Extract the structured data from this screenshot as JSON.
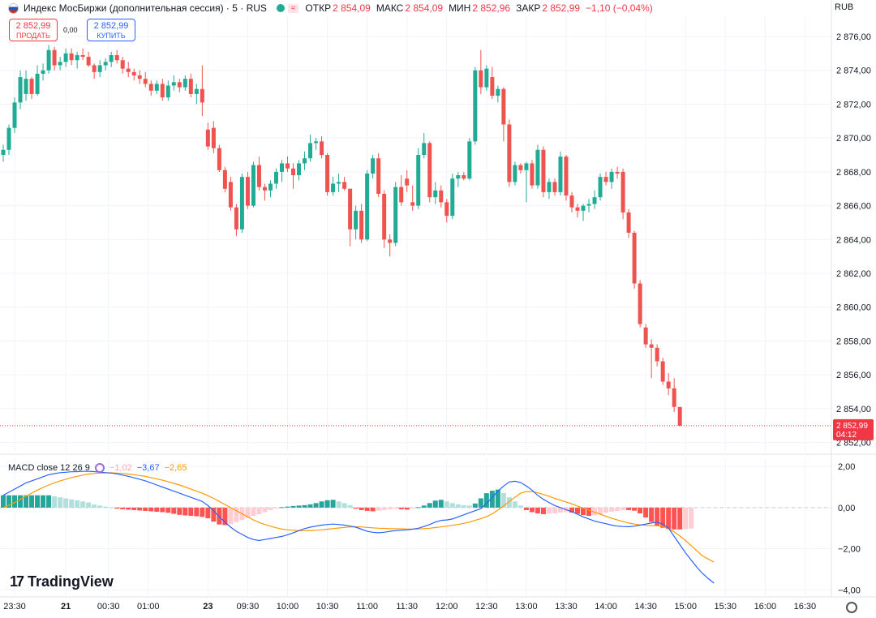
{
  "header": {
    "title": "Индекс МосБиржи (дополнительная сессия) · 5 · RUS",
    "wave_icon": "≈",
    "open_label": "ОТКР",
    "open_value": "2 854,09",
    "high_label": "МАКС",
    "high_value": "2 854,09",
    "low_label": "МИН",
    "low_value": "2 852,96",
    "close_label": "ЗАКР",
    "close_value": "2 852,99",
    "change_value": "−1,10 (−0,04%)"
  },
  "trade": {
    "sell_price": "2 852,99",
    "sell_label": "ПРОДАТЬ",
    "buy_price": "2 852,99",
    "buy_label": "КУПИТЬ",
    "spread": "0,00"
  },
  "currency": "RUB",
  "macd_header": {
    "label": "MACD close 12 26 9",
    "hist": "−1,02",
    "macd": "−3,67",
    "signal": "−2,65"
  },
  "logo": {
    "mark": "17",
    "text": "TradingView"
  },
  "colors": {
    "up": "#22ab94",
    "down": "#ef5350",
    "hist_pos_strong": "#26a69a",
    "hist_pos_weak": "#b2dfdb",
    "hist_neg_strong": "#ff5252",
    "hist_neg_weak": "#ffcdd2",
    "macd_line": "#2962ff",
    "signal_line": "#ff9800",
    "price_tag": "#f23645"
  },
  "chart_data": [
    {
      "type": "candlestick",
      "name": "price",
      "ylim": [
        2851.5,
        2877.2
      ],
      "y_ticks": [
        "2 876,00",
        "2 874,00",
        "2 872,00",
        "2 870,00",
        "2 868,00",
        "2 866,00",
        "2 864,00",
        "2 862,00",
        "2 860,00",
        "2 858,00",
        "2 856,00",
        "2 854,00",
        "2 852,00"
      ],
      "y_tick_values": [
        2876,
        2874,
        2872,
        2870,
        2868,
        2866,
        2864,
        2862,
        2860,
        2858,
        2856,
        2854,
        2852
      ],
      "last_price": 2852.99,
      "last_price_label": "2 852,99",
      "countdown": "04:12",
      "x_ticks": [
        "23:30",
        "21",
        "00:30",
        "01:00",
        "23",
        "09:30",
        "10:00",
        "10:30",
        "11:00",
        "11:30",
        "12:00",
        "12:30",
        "13:00",
        "13:30",
        "14:00",
        "14:30",
        "15:00",
        "15:30",
        "16:00",
        "16:30"
      ],
      "x_tick_index": [
        2,
        11,
        18.5,
        25.5,
        36,
        43,
        50,
        57,
        64,
        71,
        78,
        85,
        92,
        99,
        106,
        113,
        120,
        127,
        134,
        141
      ],
      "candles": [
        [
          2869.0,
          2869.6,
          2868.6,
          2869.3
        ],
        [
          2869.3,
          2870.8,
          2869.0,
          2870.6
        ],
        [
          2870.6,
          2872.4,
          2870.3,
          2872.1
        ],
        [
          2872.1,
          2874.0,
          2871.7,
          2873.6
        ],
        [
          2872.6,
          2874.0,
          2872.2,
          2873.5
        ],
        [
          2873.5,
          2873.6,
          2872.3,
          2872.6
        ],
        [
          2872.6,
          2874.3,
          2872.5,
          2873.8
        ],
        [
          2873.8,
          2874.4,
          2873.4,
          2874.0
        ],
        [
          2874.0,
          2875.5,
          2873.8,
          2875.2
        ],
        [
          2875.2,
          2875.4,
          2874.0,
          2874.3
        ],
        [
          2874.3,
          2874.8,
          2874.0,
          2874.5
        ],
        [
          2874.5,
          2875.3,
          2874.2,
          2875.0
        ],
        [
          2875.0,
          2875.3,
          2874.3,
          2874.6
        ],
        [
          2874.6,
          2875.1,
          2874.1,
          2874.9
        ],
        [
          2874.9,
          2875.3,
          2874.6,
          2874.8
        ],
        [
          2874.8,
          2875.1,
          2874.2,
          2874.3
        ],
        [
          2874.3,
          2874.4,
          2873.5,
          2873.9
        ],
        [
          2873.9,
          2874.6,
          2873.6,
          2874.3
        ],
        [
          2874.3,
          2874.7,
          2874.0,
          2874.5
        ],
        [
          2874.5,
          2875.1,
          2874.2,
          2874.9
        ],
        [
          2874.9,
          2875.2,
          2874.4,
          2874.6
        ],
        [
          2874.6,
          2874.8,
          2873.8,
          2874.1
        ],
        [
          2874.1,
          2874.5,
          2873.6,
          2873.9
        ],
        [
          2873.9,
          2874.1,
          2873.4,
          2873.7
        ],
        [
          2873.7,
          2874.0,
          2873.2,
          2873.5
        ],
        [
          2873.5,
          2873.9,
          2873.0,
          2873.2
        ],
        [
          2873.2,
          2873.4,
          2872.5,
          2872.8
        ],
        [
          2872.8,
          2873.4,
          2872.6,
          2873.2
        ],
        [
          2873.2,
          2873.5,
          2872.2,
          2872.4
        ],
        [
          2872.4,
          2873.4,
          2872.2,
          2873.1
        ],
        [
          2873.1,
          2873.7,
          2872.8,
          2873.3
        ],
        [
          2873.3,
          2873.5,
          2872.7,
          2873.0
        ],
        [
          2873.0,
          2873.7,
          2872.8,
          2873.5
        ],
        [
          2873.5,
          2873.8,
          2872.4,
          2872.6
        ],
        [
          2872.6,
          2873.2,
          2872.0,
          2872.9
        ],
        [
          2872.9,
          2874.3,
          2871.3,
          2872.1
        ],
        [
          2870.5,
          2870.9,
          2869.3,
          2869.5
        ],
        [
          2870.6,
          2871.0,
          2869.1,
          2869.4
        ],
        [
          2869.4,
          2869.6,
          2868.0,
          2868.1
        ],
        [
          2868.1,
          2868.3,
          2866.8,
          2867.0
        ],
        [
          2867.4,
          2867.7,
          2865.7,
          2865.9
        ],
        [
          2865.9,
          2866.1,
          2864.2,
          2864.6
        ],
        [
          2864.6,
          2867.9,
          2864.4,
          2867.7
        ],
        [
          2867.7,
          2868.0,
          2865.8,
          2866.0
        ],
        [
          2866.0,
          2868.6,
          2865.9,
          2868.4
        ],
        [
          2868.4,
          2868.9,
          2866.9,
          2867.1
        ],
        [
          2867.1,
          2867.3,
          2866.3,
          2866.9
        ],
        [
          2866.9,
          2867.5,
          2866.5,
          2867.3
        ],
        [
          2867.3,
          2868.2,
          2867.0,
          2868.0
        ],
        [
          2868.0,
          2868.7,
          2867.4,
          2868.5
        ],
        [
          2868.5,
          2868.9,
          2868.0,
          2868.2
        ],
        [
          2868.2,
          2868.5,
          2867.0,
          2867.8
        ],
        [
          2867.8,
          2868.7,
          2867.5,
          2868.5
        ],
        [
          2868.5,
          2869.2,
          2868.1,
          2868.8
        ],
        [
          2868.8,
          2870.2,
          2868.6,
          2869.7
        ],
        [
          2869.7,
          2870.0,
          2869.3,
          2869.8
        ],
        [
          2869.8,
          2870.1,
          2868.8,
          2869.0
        ],
        [
          2869.0,
          2869.1,
          2866.6,
          2866.8
        ],
        [
          2866.8,
          2867.7,
          2866.6,
          2867.3
        ],
        [
          2867.3,
          2867.9,
          2866.8,
          2867.4
        ],
        [
          2867.4,
          2867.7,
          2866.9,
          2867.0
        ],
        [
          2867.0,
          2867.0,
          2863.6,
          2864.6
        ],
        [
          2864.6,
          2866.0,
          2864.0,
          2865.7
        ],
        [
          2865.7,
          2866.1,
          2863.8,
          2864.0
        ],
        [
          2864.0,
          2868.1,
          2863.9,
          2867.9
        ],
        [
          2867.9,
          2869.0,
          2867.6,
          2868.8
        ],
        [
          2868.8,
          2869.1,
          2866.5,
          2866.7
        ],
        [
          2866.7,
          2866.9,
          2863.5,
          2864.0
        ],
        [
          2864.0,
          2864.3,
          2863.0,
          2863.8
        ],
        [
          2863.8,
          2867.4,
          2863.6,
          2867.1
        ],
        [
          2867.1,
          2867.8,
          2866.0,
          2866.2
        ],
        [
          2867.6,
          2868.1,
          2866.8,
          2867.2
        ],
        [
          2866.2,
          2867.2,
          2865.7,
          2866.0
        ],
        [
          2866.0,
          2869.4,
          2865.8,
          2869.0
        ],
        [
          2869.0,
          2870.3,
          2868.8,
          2869.7
        ],
        [
          2869.7,
          2869.8,
          2866.2,
          2866.5
        ],
        [
          2866.5,
          2867.4,
          2866.1,
          2866.9
        ],
        [
          2866.9,
          2867.2,
          2865.9,
          2866.2
        ],
        [
          2866.2,
          2866.4,
          2865.0,
          2865.4
        ],
        [
          2865.4,
          2867.9,
          2865.2,
          2867.6
        ],
        [
          2867.6,
          2868.0,
          2867.1,
          2867.8
        ],
        [
          2867.8,
          2868.0,
          2867.5,
          2867.6
        ],
        [
          2867.6,
          2870.0,
          2867.5,
          2869.8
        ],
        [
          2869.8,
          2874.2,
          2869.6,
          2874.0
        ],
        [
          2874.0,
          2875.2,
          2872.6,
          2873.0
        ],
        [
          2873.0,
          2874.3,
          2872.8,
          2874.1
        ],
        [
          2873.6,
          2874.2,
          2872.3,
          2872.5
        ],
        [
          2872.5,
          2873.1,
          2872.1,
          2872.9
        ],
        [
          2872.9,
          2873.0,
          2869.8,
          2870.8
        ],
        [
          2870.8,
          2871.1,
          2867.1,
          2867.4
        ],
        [
          2867.4,
          2868.6,
          2867.2,
          2868.4
        ],
        [
          2868.4,
          2868.5,
          2867.9,
          2868.1
        ],
        [
          2868.1,
          2868.6,
          2866.2,
          2868.5
        ],
        [
          2868.5,
          2868.7,
          2867.0,
          2867.2
        ],
        [
          2867.2,
          2869.6,
          2867.0,
          2869.3
        ],
        [
          2869.3,
          2869.5,
          2866.5,
          2866.8
        ],
        [
          2866.8,
          2867.6,
          2866.4,
          2867.4
        ],
        [
          2867.4,
          2867.6,
          2866.6,
          2866.8
        ],
        [
          2866.8,
          2869.2,
          2866.6,
          2868.9
        ],
        [
          2868.9,
          2869.0,
          2866.3,
          2866.6
        ],
        [
          2866.6,
          2866.8,
          2865.6,
          2865.9
        ],
        [
          2865.9,
          2866.1,
          2865.3,
          2865.7
        ],
        [
          2865.7,
          2866.1,
          2865.1,
          2866.0
        ],
        [
          2866.0,
          2866.4,
          2865.6,
          2866.1
        ],
        [
          2866.1,
          2866.9,
          2865.8,
          2866.5
        ],
        [
          2866.5,
          2867.9,
          2866.3,
          2867.7
        ],
        [
          2867.7,
          2868.0,
          2867.2,
          2867.4
        ],
        [
          2867.4,
          2868.2,
          2867.0,
          2868.0
        ],
        [
          2868.0,
          2868.3,
          2867.6,
          2867.9
        ],
        [
          2868.0,
          2868.2,
          2865.2,
          2865.6
        ],
        [
          2865.6,
          2865.8,
          2864.1,
          2864.4
        ],
        [
          2864.4,
          2864.5,
          2861.1,
          2861.4
        ],
        [
          2861.4,
          2861.6,
          2858.8,
          2859.0
        ],
        [
          2858.8,
          2859.0,
          2857.6,
          2857.8
        ],
        [
          2857.8,
          2858.1,
          2855.8,
          2857.6
        ],
        [
          2857.6,
          2857.8,
          2856.5,
          2856.8
        ],
        [
          2856.8,
          2857.0,
          2855.4,
          2855.6
        ],
        [
          2855.6,
          2856.1,
          2854.8,
          2855.2
        ],
        [
          2855.2,
          2855.8,
          2853.8,
          2854.1
        ],
        [
          2854.1,
          2854.1,
          2852.96,
          2852.99
        ]
      ]
    },
    {
      "type": "macd",
      "name": "MACD close 12 26 9",
      "ylim": [
        -4.3,
        2.4
      ],
      "y_ticks": [
        "2,00",
        "0,00",
        "−2,00",
        "−4,00"
      ],
      "y_tick_values": [
        2,
        0,
        -2,
        -4
      ],
      "histogram": [
        0.6,
        0.6,
        0.6,
        0.6,
        0.6,
        0.6,
        0.6,
        0.6,
        0.6,
        0.55,
        0.5,
        0.45,
        0.4,
        0.35,
        0.3,
        0.25,
        0.15,
        0.1,
        0.05,
        0.02,
        -0.05,
        -0.08,
        -0.1,
        -0.12,
        -0.14,
        -0.16,
        -0.18,
        -0.2,
        -0.22,
        -0.25,
        -0.3,
        -0.35,
        -0.38,
        -0.4,
        -0.42,
        -0.45,
        -0.52,
        -0.68,
        -0.82,
        -0.85,
        -0.8,
        -0.7,
        -0.6,
        -0.5,
        -0.4,
        -0.32,
        -0.22,
        -0.12,
        -0.05,
        0.02,
        0.05,
        0.08,
        0.1,
        0.12,
        0.16,
        0.22,
        0.3,
        0.36,
        0.38,
        0.3,
        0.22,
        0.12,
        -0.05,
        -0.12,
        -0.16,
        -0.18,
        -0.15,
        -0.12,
        -0.08,
        -0.05,
        -0.08,
        -0.1,
        -0.05,
        0.02,
        0.1,
        0.22,
        0.34,
        0.38,
        0.3,
        0.22,
        0.16,
        0.12,
        0.1,
        0.2,
        0.45,
        0.7,
        0.82,
        0.88,
        0.7,
        0.5,
        0.3,
        0.1,
        -0.12,
        -0.22,
        -0.28,
        -0.32,
        -0.3,
        -0.28,
        -0.24,
        -0.22,
        -0.24,
        -0.3,
        -0.36,
        -0.4,
        -0.38,
        -0.32,
        -0.25,
        -0.2,
        -0.16,
        -0.12,
        -0.12,
        -0.15,
        -0.28,
        -0.48,
        -0.7,
        -0.88,
        -0.98,
        -1.04,
        -1.06,
        -1.06,
        -1.04,
        -1.02
      ],
      "macd_line": [
        0.6,
        0.75,
        0.9,
        1.05,
        1.2,
        1.3,
        1.4,
        1.5,
        1.6,
        1.65,
        1.7,
        1.72,
        1.74,
        1.75,
        1.76,
        1.76,
        1.75,
        1.72,
        1.7,
        1.68,
        1.64,
        1.58,
        1.52,
        1.45,
        1.38,
        1.3,
        1.2,
        1.1,
        1.0,
        0.9,
        0.8,
        0.7,
        0.6,
        0.5,
        0.4,
        0.3,
        0.1,
        -0.15,
        -0.45,
        -0.7,
        -0.95,
        -1.15,
        -1.3,
        -1.45,
        -1.55,
        -1.6,
        -1.55,
        -1.5,
        -1.45,
        -1.4,
        -1.32,
        -1.22,
        -1.12,
        -1.02,
        -0.95,
        -0.9,
        -0.85,
        -0.82,
        -0.8,
        -0.82,
        -0.85,
        -0.9,
        -0.95,
        -1.05,
        -1.15,
        -1.2,
        -1.22,
        -1.2,
        -1.15,
        -1.12,
        -1.1,
        -1.08,
        -1.05,
        -1.0,
        -0.92,
        -0.82,
        -0.7,
        -0.62,
        -0.6,
        -0.55,
        -0.45,
        -0.35,
        -0.25,
        -0.15,
        -0.05,
        0.2,
        0.5,
        0.8,
        1.05,
        1.25,
        1.28,
        1.22,
        1.05,
        0.85,
        0.6,
        0.4,
        0.25,
        0.1,
        0.0,
        -0.1,
        -0.2,
        -0.32,
        -0.45,
        -0.55,
        -0.65,
        -0.72,
        -0.78,
        -0.85,
        -0.9,
        -0.92,
        -0.93,
        -0.9,
        -0.85,
        -0.8,
        -0.75,
        -0.7,
        -0.8,
        -1.0,
        -1.4,
        -1.8,
        -2.2,
        -2.55,
        -2.9,
        -3.2,
        -3.45,
        -3.67
      ],
      "signal_line": [
        0.0,
        0.12,
        0.25,
        0.4,
        0.55,
        0.7,
        0.85,
        0.98,
        1.1,
        1.2,
        1.3,
        1.38,
        1.46,
        1.52,
        1.58,
        1.63,
        1.66,
        1.68,
        1.69,
        1.69,
        1.68,
        1.66,
        1.63,
        1.6,
        1.56,
        1.52,
        1.46,
        1.4,
        1.33,
        1.26,
        1.18,
        1.1,
        1.0,
        0.9,
        0.8,
        0.7,
        0.58,
        0.45,
        0.3,
        0.15,
        0.0,
        -0.15,
        -0.3,
        -0.45,
        -0.6,
        -0.72,
        -0.82,
        -0.9,
        -0.98,
        -1.04,
        -1.08,
        -1.1,
        -1.12,
        -1.12,
        -1.11,
        -1.1,
        -1.08,
        -1.05,
        -1.02,
        -0.99,
        -0.96,
        -0.94,
        -0.93,
        -0.94,
        -0.96,
        -0.98,
        -1.0,
        -1.01,
        -1.02,
        -1.03,
        -1.03,
        -1.04,
        -1.04,
        -1.04,
        -1.02,
        -1.0,
        -0.97,
        -0.94,
        -0.9,
        -0.86,
        -0.82,
        -0.76,
        -0.7,
        -0.62,
        -0.54,
        -0.44,
        -0.3,
        -0.12,
        0.08,
        0.3,
        0.5,
        0.7,
        0.78,
        0.78,
        0.72,
        0.64,
        0.55,
        0.45,
        0.36,
        0.27,
        0.18,
        0.08,
        -0.02,
        -0.12,
        -0.22,
        -0.32,
        -0.42,
        -0.52,
        -0.6,
        -0.68,
        -0.75,
        -0.8,
        -0.84,
        -0.86,
        -0.88,
        -0.88,
        -0.92,
        -1.02,
        -1.18,
        -1.38,
        -1.6,
        -1.85,
        -2.1,
        -2.35,
        -2.5,
        -2.65
      ]
    }
  ]
}
